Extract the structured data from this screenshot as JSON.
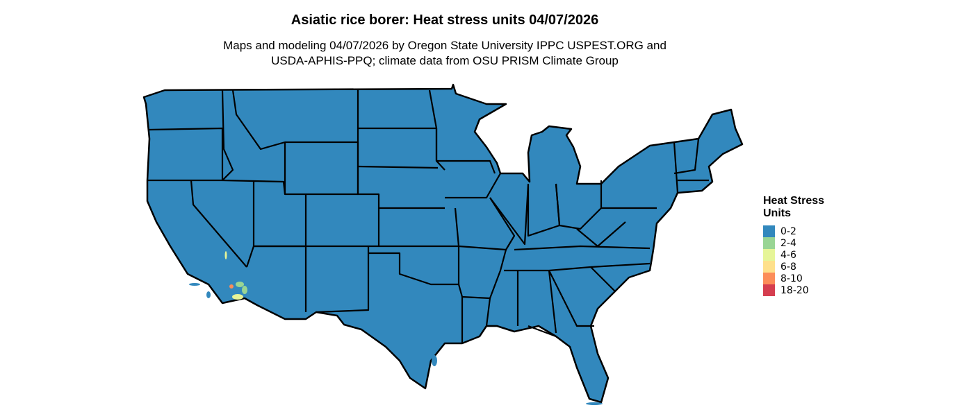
{
  "title": "Asiatic rice borer: Heat stress units 04/07/2026",
  "subtitle_line1": "Maps and modeling 04/07/2026 by Oregon State University IPPC USPEST.ORG and",
  "subtitle_line2": "USDA-APHIS-PPQ; climate data from OSU PRISM Climate Group",
  "legend": {
    "title": "Heat Stress Units",
    "items": [
      {
        "label": "0-2",
        "color": "#3288BD"
      },
      {
        "label": "2-4",
        "color": "#99D594"
      },
      {
        "label": "4-6",
        "color": "#E6F598"
      },
      {
        "label": "6-8",
        "color": "#FEE08B"
      },
      {
        "label": "8-10",
        "color": "#FC8D59"
      },
      {
        "label": "18-20",
        "color": "#D53E4F"
      }
    ]
  },
  "map": {
    "region": "Contiguous United States",
    "dominant_class": "0-2",
    "hotspot_region": "Southern California deserts"
  }
}
